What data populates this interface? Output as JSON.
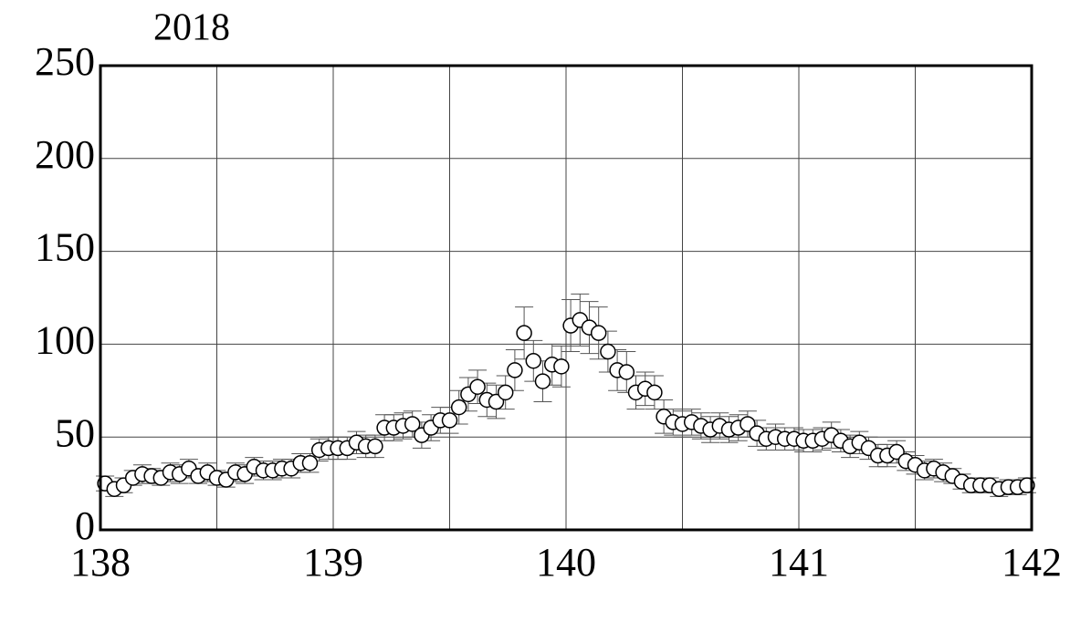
{
  "chart_data": {
    "type": "scatter",
    "title": "2018",
    "x": [
      138.02,
      138.06,
      138.1,
      138.14,
      138.18,
      138.22,
      138.26,
      138.3,
      138.34,
      138.38,
      138.42,
      138.46,
      138.5,
      138.54,
      138.58,
      138.62,
      138.66,
      138.7,
      138.74,
      138.78,
      138.82,
      138.86,
      138.9,
      138.94,
      138.98,
      139.02,
      139.06,
      139.1,
      139.14,
      139.18,
      139.22,
      139.26,
      139.3,
      139.34,
      139.38,
      139.42,
      139.46,
      139.5,
      139.54,
      139.58,
      139.62,
      139.66,
      139.7,
      139.74,
      139.78,
      139.82,
      139.86,
      139.9,
      139.94,
      139.98,
      140.02,
      140.06,
      140.1,
      140.14,
      140.18,
      140.22,
      140.26,
      140.3,
      140.34,
      140.38,
      140.42,
      140.46,
      140.5,
      140.54,
      140.58,
      140.62,
      140.66,
      140.7,
      140.74,
      140.78,
      140.82,
      140.86,
      140.9,
      140.94,
      140.98,
      141.02,
      141.06,
      141.1,
      141.14,
      141.18,
      141.22,
      141.26,
      141.3,
      141.34,
      141.38,
      141.42,
      141.46,
      141.5,
      141.54,
      141.58,
      141.62,
      141.66,
      141.7,
      141.74,
      141.78,
      141.82,
      141.86,
      141.9,
      141.94,
      141.98
    ],
    "values": [
      25,
      22,
      24,
      28,
      30,
      29,
      28,
      31,
      30,
      33,
      29,
      31,
      28,
      27,
      31,
      30,
      34,
      32,
      32,
      33,
      33,
      36,
      36,
      43,
      44,
      44,
      44,
      47,
      45,
      45,
      55,
      55,
      56,
      57,
      51,
      55,
      59,
      59,
      66,
      73,
      77,
      70,
      69,
      74,
      86,
      106,
      91,
      80,
      89,
      88,
      110,
      113,
      109,
      106,
      96,
      86,
      85,
      74,
      76,
      74,
      61,
      58,
      57,
      58,
      56,
      54,
      56,
      54,
      55,
      57,
      52,
      49,
      50,
      49,
      49,
      48,
      48,
      49,
      51,
      48,
      45,
      47,
      44,
      40,
      40,
      42,
      37,
      35,
      32,
      33,
      31,
      29,
      26,
      24,
      24,
      24,
      22,
      23,
      23,
      24
    ],
    "errors": [
      4,
      4,
      4,
      4,
      5,
      4,
      4,
      5,
      5,
      5,
      4,
      5,
      4,
      4,
      5,
      5,
      5,
      5,
      5,
      5,
      5,
      5,
      5,
      6,
      6,
      6,
      6,
      6,
      6,
      6,
      7,
      7,
      7,
      7,
      7,
      7,
      7,
      7,
      9,
      9,
      9,
      9,
      9,
      9,
      11,
      14,
      11,
      11,
      11,
      11,
      14,
      14,
      14,
      14,
      11,
      11,
      11,
      9,
      9,
      9,
      9,
      7,
      7,
      7,
      7,
      7,
      7,
      7,
      7,
      7,
      7,
      6,
      7,
      6,
      6,
      6,
      6,
      6,
      7,
      6,
      6,
      6,
      6,
      6,
      6,
      6,
      5,
      5,
      5,
      5,
      5,
      4,
      4,
      4,
      4,
      4,
      4,
      4,
      4,
      4
    ],
    "xlim": [
      138,
      142
    ],
    "xticks": [
      138,
      139,
      140,
      141,
      142
    ],
    "xgrid": [
      138.5,
      139.5,
      140.5,
      141.5
    ],
    "ylim": [
      0,
      250
    ],
    "yticks": [
      0,
      50,
      100,
      150,
      200,
      250
    ],
    "grid": true,
    "marker_fill": "#ffffff",
    "marker_stroke": "#000000",
    "errorbar_color": "#555555"
  }
}
